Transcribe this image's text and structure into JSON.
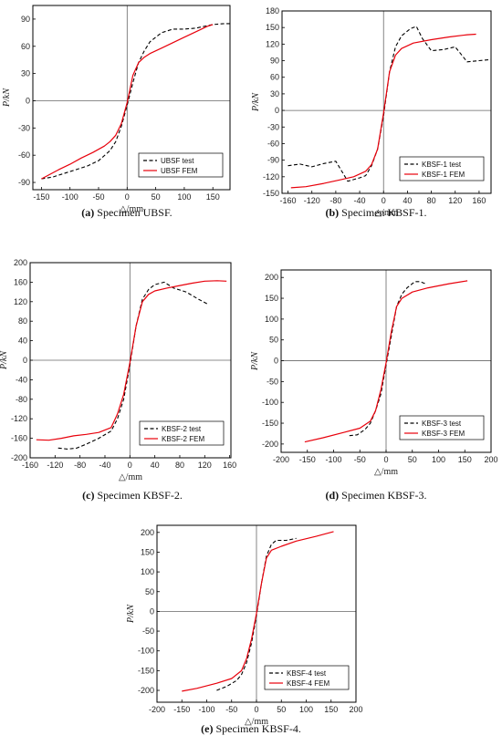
{
  "chart_data": [
    {
      "type": "line",
      "xlabel": "△/mm",
      "ylabel": "P/kN",
      "xlim": [
        -165,
        180
      ],
      "ylim": [
        -98,
        105
      ],
      "xticks": [
        -150,
        -100,
        -50,
        0,
        50,
        100,
        150
      ],
      "yticks": [
        -90,
        -60,
        -30,
        0,
        30,
        60,
        90
      ],
      "legend_position": "bottom-right",
      "caption": {
        "letter": "(a)",
        "text": " Specimen UBSF."
      },
      "series": [
        {
          "name": "UBSF test",
          "style": "dashed",
          "color": "#000000",
          "x": [
            -150,
            -130,
            -100,
            -70,
            -50,
            -30,
            -20,
            -10,
            0,
            10,
            20,
            30,
            40,
            50,
            60,
            80,
            100,
            120,
            150,
            170,
            180
          ],
          "y": [
            -86,
            -84,
            -78,
            -72,
            -66,
            -55,
            -45,
            -28,
            -5,
            20,
            42,
            55,
            65,
            70,
            75,
            79,
            79,
            80,
            84,
            85,
            85
          ]
        },
        {
          "name": "UBSF FEM",
          "style": "solid",
          "color": "#e8000b",
          "x": [
            -150,
            -120,
            -100,
            -80,
            -60,
            -40,
            -30,
            -20,
            -10,
            0,
            10,
            20,
            30,
            40,
            60,
            80,
            100,
            120,
            140,
            150
          ],
          "y": [
            -86,
            -76,
            -70,
            -63,
            -57,
            -50,
            -45,
            -38,
            -25,
            -2,
            28,
            42,
            48,
            52,
            58,
            64,
            70,
            76,
            82,
            84
          ]
        }
      ]
    },
    {
      "type": "line",
      "xlabel": "△/mm",
      "ylabel": "P/kN",
      "xlim": [
        -170,
        180
      ],
      "ylim": [
        -150,
        180
      ],
      "xticks": [
        -160,
        -120,
        -80,
        -40,
        0,
        40,
        80,
        120,
        160
      ],
      "yticks": [
        -150,
        -120,
        -90,
        -60,
        -30,
        0,
        30,
        60,
        90,
        120,
        150,
        180
      ],
      "legend_position": "bottom-right",
      "caption": {
        "letter": "(b)",
        "text": " Specimen KBSF-1."
      },
      "series": [
        {
          "name": "KBSF-1 test",
          "style": "dashed",
          "color": "#000000",
          "x": [
            -160,
            -140,
            -120,
            -100,
            -80,
            -60,
            -40,
            -30,
            -20,
            -10,
            0,
            10,
            20,
            30,
            45,
            55,
            65,
            80,
            100,
            120,
            140,
            160,
            180
          ],
          "y": [
            -100,
            -97,
            -102,
            -96,
            -92,
            -128,
            -122,
            -118,
            -100,
            -70,
            -10,
            70,
            115,
            135,
            148,
            152,
            130,
            108,
            110,
            115,
            88,
            90,
            92
          ]
        },
        {
          "name": "KBSF-1 FEM",
          "style": "solid",
          "color": "#e8000b",
          "x": [
            -155,
            -130,
            -100,
            -70,
            -50,
            -30,
            -20,
            -10,
            0,
            10,
            20,
            30,
            50,
            80,
            110,
            140,
            155
          ],
          "y": [
            -140,
            -138,
            -132,
            -125,
            -120,
            -110,
            -98,
            -70,
            -5,
            70,
            100,
            112,
            122,
            128,
            133,
            137,
            138
          ]
        }
      ]
    },
    {
      "type": "line",
      "xlabel": "△/mm",
      "ylabel": "P/kN",
      "xlim": [
        -160,
        162
      ],
      "ylim": [
        -200,
        200
      ],
      "xticks": [
        -160,
        -120,
        -80,
        -40,
        0,
        40,
        80,
        120,
        160
      ],
      "yticks": [
        -200,
        -160,
        -120,
        -80,
        -40,
        0,
        40,
        80,
        120,
        160,
        200
      ],
      "legend_position": "bottom-right",
      "caption": {
        "letter": "(c)",
        "text": " Specimen KBSF-2."
      },
      "series": [
        {
          "name": "KBSF-2 test",
          "style": "dashed",
          "color": "#000000",
          "x": [
            -115,
            -100,
            -85,
            -70,
            -50,
            -30,
            -20,
            -10,
            0,
            10,
            20,
            30,
            40,
            55,
            70,
            90,
            110,
            125
          ],
          "y": [
            -180,
            -182,
            -180,
            -172,
            -160,
            -145,
            -120,
            -80,
            -10,
            70,
            125,
            145,
            155,
            160,
            148,
            140,
            125,
            115
          ]
        },
        {
          "name": "KBSF-2 FEM",
          "style": "solid",
          "color": "#e8000b",
          "x": [
            -150,
            -130,
            -110,
            -90,
            -70,
            -50,
            -30,
            -20,
            -10,
            0,
            10,
            20,
            30,
            40,
            60,
            80,
            100,
            120,
            140,
            155
          ],
          "y": [
            -163,
            -164,
            -160,
            -155,
            -152,
            -148,
            -138,
            -110,
            -70,
            -5,
            70,
            120,
            135,
            142,
            148,
            153,
            158,
            162,
            163,
            162
          ]
        }
      ]
    },
    {
      "type": "line",
      "xlabel": "△/mm",
      "ylabel": "P/kN",
      "xlim": [
        -200,
        200
      ],
      "ylim": [
        -220,
        218
      ],
      "xticks": [
        -200,
        -150,
        -100,
        -50,
        0,
        50,
        100,
        150,
        200
      ],
      "yticks": [
        -200,
        -150,
        -100,
        -50,
        0,
        50,
        100,
        150,
        200
      ],
      "legend_position": "bottom-right",
      "caption": {
        "letter": "(d)",
        "text": " Specimen KBSF-3."
      },
      "series": [
        {
          "name": "KBSF-3 test",
          "style": "dashed",
          "color": "#000000",
          "x": [
            -70,
            -55,
            -40,
            -30,
            -20,
            -10,
            0,
            10,
            20,
            30,
            40,
            55,
            65,
            75
          ],
          "y": [
            -180,
            -178,
            -165,
            -150,
            -120,
            -80,
            -10,
            60,
            130,
            160,
            175,
            190,
            190,
            185
          ]
        },
        {
          "name": "KBSF-3 FEM",
          "style": "solid",
          "color": "#e8000b",
          "x": [
            -155,
            -120,
            -80,
            -50,
            -30,
            -20,
            -10,
            0,
            10,
            20,
            30,
            50,
            80,
            120,
            155
          ],
          "y": [
            -195,
            -185,
            -172,
            -162,
            -145,
            -120,
            -70,
            -5,
            70,
            130,
            150,
            165,
            175,
            185,
            192
          ]
        }
      ]
    },
    {
      "type": "line",
      "xlabel": "△/mm",
      "ylabel": "P/kN",
      "xlim": [
        -200,
        200
      ],
      "ylim": [
        -230,
        218
      ],
      "xticks": [
        -200,
        -150,
        -100,
        -50,
        0,
        50,
        100,
        150,
        200
      ],
      "yticks": [
        -200,
        -150,
        -100,
        -50,
        0,
        50,
        100,
        150,
        200
      ],
      "legend_position": "bottom-right",
      "caption": {
        "letter": "(e)",
        "text": " Specimen KBSF-4."
      },
      "series": [
        {
          "name": "KBSF-4 test",
          "style": "dashed",
          "color": "#000000",
          "x": [
            -80,
            -60,
            -40,
            -30,
            -20,
            -10,
            0,
            10,
            20,
            30,
            40,
            60,
            80
          ],
          "y": [
            -200,
            -190,
            -175,
            -160,
            -130,
            -80,
            -10,
            70,
            140,
            170,
            180,
            180,
            185
          ]
        },
        {
          "name": "KBSF-4 FEM",
          "style": "solid",
          "color": "#e8000b",
          "x": [
            -150,
            -120,
            -80,
            -50,
            -30,
            -20,
            -10,
            0,
            10,
            20,
            30,
            50,
            80,
            120,
            155
          ],
          "y": [
            -202,
            -195,
            -182,
            -170,
            -150,
            -120,
            -70,
            -5,
            70,
            135,
            155,
            165,
            178,
            190,
            202
          ]
        }
      ]
    }
  ]
}
